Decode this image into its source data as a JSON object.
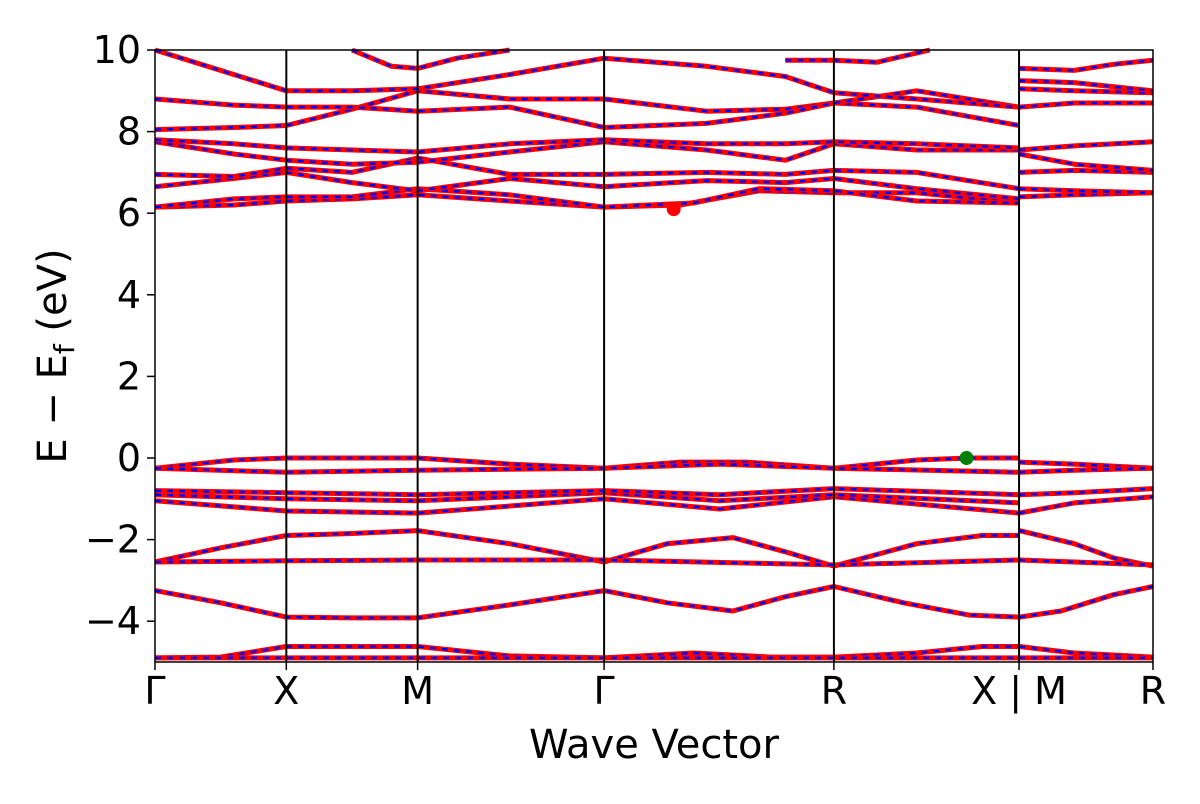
{
  "chart_data": {
    "type": "line",
    "title": "",
    "xlabel": "Wave Vector",
    "ylabel_main": "E − E",
    "ylabel_sub": "f",
    "ylabel_unit": " (eV)",
    "ylim": [
      -5,
      10
    ],
    "yticks": [
      {
        "value": -4,
        "label": "−4"
      },
      {
        "value": -2,
        "label": "−2"
      },
      {
        "value": 0,
        "label": "0"
      },
      {
        "value": 2,
        "label": "2"
      },
      {
        "value": 4,
        "label": "4"
      },
      {
        "value": 6,
        "label": "6"
      },
      {
        "value": 8,
        "label": "8"
      },
      {
        "value": 10,
        "label": "10"
      }
    ],
    "xlim": [
      0,
      7.6
    ],
    "kpoints": [
      {
        "x": 0.0,
        "label": "Γ"
      },
      {
        "x": 1.0,
        "label": "X"
      },
      {
        "x": 2.0,
        "label": "M"
      },
      {
        "x": 3.42,
        "label": "Γ"
      },
      {
        "x": 5.17,
        "label": "R"
      },
      {
        "x": 6.58,
        "label": "X | M"
      },
      {
        "x": 7.6,
        "label": "R"
      }
    ],
    "segment_break": 6.58,
    "series_colors": {
      "primary": "#ff0000",
      "secondary": "#0000ff"
    },
    "cbm_marker": {
      "x": 3.95,
      "y": 6.1,
      "color": "#ff0000"
    },
    "vbm_marker": {
      "x": 6.18,
      "y": 0.0,
      "color": "#008000"
    },
    "bands": [
      {
        "x": [
          0,
          0.5,
          1.0,
          1.5,
          2.0,
          2.7,
          3.42,
          4.1,
          4.7,
          5.17,
          5.8,
          6.3,
          6.58
        ],
        "y": [
          -4.9,
          -4.88,
          -4.62,
          -4.62,
          -4.62,
          -4.85,
          -4.9,
          -4.78,
          -4.88,
          -4.88,
          -4.78,
          -4.62,
          -4.62
        ]
      },
      {
        "x": [
          0,
          1.0,
          2.0,
          3.42,
          5.17,
          6.58
        ],
        "y": [
          -4.9,
          -4.9,
          -4.9,
          -4.9,
          -4.9,
          -4.9
        ]
      },
      {
        "x": [
          0,
          0.5,
          1.0,
          1.5,
          2.0,
          2.7,
          3.42,
          3.9,
          4.4,
          4.8,
          5.17,
          5.7,
          6.2,
          6.58
        ],
        "y": [
          -3.25,
          -3.55,
          -3.9,
          -3.92,
          -3.92,
          -3.6,
          -3.25,
          -3.55,
          -3.75,
          -3.4,
          -3.15,
          -3.55,
          -3.85,
          -3.9
        ]
      },
      {
        "x": [
          0,
          0.5,
          1.0,
          1.5,
          2.0,
          2.7,
          3.42,
          3.9,
          4.4,
          4.8,
          5.17,
          5.8,
          6.3,
          6.58
        ],
        "y": [
          -2.55,
          -2.2,
          -1.9,
          -1.85,
          -1.78,
          -2.1,
          -2.55,
          -2.1,
          -1.95,
          -2.3,
          -2.65,
          -2.1,
          -1.9,
          -1.9
        ]
      },
      {
        "x": [
          0,
          1.0,
          2.0,
          3.42,
          5.17,
          6.58
        ],
        "y": [
          -2.55,
          -2.52,
          -2.5,
          -2.5,
          -2.62,
          -2.5
        ]
      },
      {
        "x": [
          0,
          1.0,
          2.0,
          3.42,
          4.3,
          5.17,
          6.58
        ],
        "y": [
          -1.05,
          -1.3,
          -1.35,
          -1.0,
          -1.25,
          -0.95,
          -1.35
        ]
      },
      {
        "x": [
          0,
          1.0,
          2.0,
          3.42,
          4.3,
          5.17,
          6.58
        ],
        "y": [
          -0.9,
          -1.0,
          -1.05,
          -0.85,
          -1.05,
          -0.9,
          -1.1
        ]
      },
      {
        "x": [
          0,
          1.0,
          2.0,
          3.42,
          4.3,
          5.17,
          6.58
        ],
        "y": [
          -0.8,
          -0.85,
          -0.9,
          -0.8,
          -0.9,
          -0.75,
          -0.9
        ]
      },
      {
        "x": [
          0,
          0.6,
          1.0,
          1.5,
          2.0,
          2.7,
          3.42,
          4.0,
          4.5,
          5.17,
          5.8,
          6.2,
          6.58
        ],
        "y": [
          -0.25,
          -0.05,
          0.0,
          0.0,
          0.0,
          -0.15,
          -0.25,
          -0.1,
          -0.1,
          -0.25,
          -0.05,
          0.0,
          0.0
        ]
      },
      {
        "x": [
          0,
          1.0,
          2.0,
          3.42,
          4.3,
          5.17,
          6.58
        ],
        "y": [
          -0.25,
          -0.35,
          -0.3,
          -0.25,
          -0.15,
          -0.25,
          -0.35
        ]
      },
      {
        "x": [
          0,
          0.6,
          1.0,
          1.5,
          2.0,
          2.7,
          3.42,
          4.0,
          4.6,
          5.17,
          5.8,
          6.58
        ],
        "y": [
          6.15,
          6.2,
          6.3,
          6.35,
          6.45,
          6.3,
          6.15,
          6.2,
          6.55,
          6.5,
          6.5,
          6.25
        ]
      },
      {
        "x": [
          0,
          0.6,
          1.0,
          1.5,
          2.0,
          2.7,
          3.42,
          4.1,
          4.6,
          5.17,
          5.8,
          6.58
        ],
        "y": [
          6.15,
          6.35,
          6.4,
          6.4,
          6.6,
          6.45,
          6.15,
          6.25,
          6.6,
          6.55,
          6.3,
          6.25
        ]
      },
      {
        "x": [
          0,
          0.6,
          1.0,
          1.5,
          2.0,
          2.7,
          3.42,
          4.2,
          4.8,
          5.17,
          5.8,
          6.58
        ],
        "y": [
          6.65,
          6.85,
          7.0,
          6.75,
          6.55,
          6.85,
          6.65,
          6.8,
          6.75,
          6.85,
          6.6,
          6.35
        ]
      },
      {
        "x": [
          0,
          0.6,
          1.0,
          1.5,
          2.0,
          2.7,
          3.42,
          4.2,
          4.8,
          5.17,
          5.8,
          6.58
        ],
        "y": [
          6.95,
          6.9,
          7.1,
          7.0,
          7.35,
          6.95,
          6.95,
          7.0,
          6.95,
          7.05,
          7.0,
          6.6
        ]
      },
      {
        "x": [
          0,
          0.6,
          1.0,
          1.5,
          2.0,
          2.7,
          3.42,
          4.2,
          4.8,
          5.17,
          5.8,
          6.58
        ],
        "y": [
          7.75,
          7.45,
          7.3,
          7.2,
          7.25,
          7.5,
          7.75,
          7.55,
          7.3,
          7.7,
          7.55,
          7.55
        ]
      },
      {
        "x": [
          0,
          0.6,
          1.0,
          1.5,
          2.0,
          2.7,
          3.42,
          4.2,
          4.8,
          5.17,
          5.8,
          6.58
        ],
        "y": [
          7.8,
          7.7,
          7.6,
          7.55,
          7.5,
          7.7,
          7.8,
          7.7,
          7.7,
          7.75,
          7.7,
          7.6
        ]
      },
      {
        "x": [
          0,
          0.6,
          1.0,
          1.5,
          2.0,
          2.7,
          3.42,
          4.2,
          4.8,
          5.17,
          5.8,
          6.58
        ],
        "y": [
          8.05,
          8.1,
          8.15,
          8.55,
          9.0,
          8.8,
          8.8,
          8.5,
          8.55,
          8.7,
          8.6,
          8.15
        ]
      },
      {
        "x": [
          0,
          0.6,
          1.0,
          1.5,
          2.0,
          2.7,
          3.42,
          4.2,
          4.8,
          5.17,
          5.8,
          6.58
        ],
        "y": [
          8.8,
          8.65,
          8.6,
          8.6,
          8.5,
          8.6,
          8.1,
          8.2,
          8.45,
          8.7,
          9.0,
          8.6
        ]
      },
      {
        "x": [
          0,
          0.6,
          1.0,
          1.5,
          2.0,
          2.7,
          3.42,
          4.2,
          4.8,
          5.17,
          5.8,
          6.58
        ],
        "y": [
          10.1,
          9.4,
          9.0,
          9.0,
          9.05,
          9.4,
          9.8,
          9.6,
          9.35,
          8.95,
          8.8,
          8.6
        ]
      },
      {
        "x": [
          1.5,
          1.8,
          2.0,
          2.3,
          2.7
        ],
        "y": [
          10.1,
          9.6,
          9.55,
          9.8,
          10.1
        ]
      },
      {
        "x": [
          4.8,
          5.17,
          5.5,
          5.9
        ],
        "y": [
          9.75,
          9.75,
          9.7,
          10.1
        ]
      },
      {
        "x": [
          6.58,
          7.0,
          7.6
        ],
        "y": [
          -4.62,
          -4.78,
          -4.88
        ]
      },
      {
        "x": [
          6.58,
          7.0,
          7.6
        ],
        "y": [
          -4.9,
          -4.9,
          -4.9
        ]
      },
      {
        "x": [
          6.58,
          6.9,
          7.3,
          7.6
        ],
        "y": [
          -3.9,
          -3.75,
          -3.35,
          -3.15
        ]
      },
      {
        "x": [
          6.58,
          7.0,
          7.3,
          7.6
        ],
        "y": [
          -1.78,
          -2.1,
          -2.45,
          -2.65
        ]
      },
      {
        "x": [
          6.58,
          7.0,
          7.6
        ],
        "y": [
          -2.5,
          -2.55,
          -2.62
        ]
      },
      {
        "x": [
          6.58,
          7.0,
          7.6
        ],
        "y": [
          -1.35,
          -1.1,
          -0.95
        ]
      },
      {
        "x": [
          6.58,
          7.0,
          7.6
        ],
        "y": [
          -0.9,
          -0.85,
          -0.75
        ]
      },
      {
        "x": [
          6.58,
          7.0,
          7.6
        ],
        "y": [
          -0.1,
          -0.15,
          -0.25
        ]
      },
      {
        "x": [
          6.58,
          7.0,
          7.6
        ],
        "y": [
          -0.35,
          -0.3,
          -0.25
        ]
      },
      {
        "x": [
          6.58,
          7.0,
          7.6
        ],
        "y": [
          6.4,
          6.45,
          6.5
        ]
      },
      {
        "x": [
          6.58,
          7.0,
          7.6
        ],
        "y": [
          6.6,
          6.55,
          6.5
        ]
      },
      {
        "x": [
          6.58,
          7.0,
          7.6
        ],
        "y": [
          7.0,
          7.05,
          7.0
        ]
      },
      {
        "x": [
          6.58,
          7.0,
          7.6
        ],
        "y": [
          7.45,
          7.2,
          7.05
        ]
      },
      {
        "x": [
          6.58,
          7.0,
          7.6
        ],
        "y": [
          7.55,
          7.65,
          7.75
        ]
      },
      {
        "x": [
          6.58,
          7.0,
          7.6
        ],
        "y": [
          8.6,
          8.7,
          8.7
        ]
      },
      {
        "x": [
          6.58,
          7.0,
          7.6
        ],
        "y": [
          9.05,
          9.0,
          8.95
        ]
      },
      {
        "x": [
          6.58,
          7.0,
          7.6
        ],
        "y": [
          9.25,
          9.2,
          9.0
        ]
      },
      {
        "x": [
          6.58,
          7.0,
          7.3,
          7.6
        ],
        "y": [
          9.55,
          9.5,
          9.65,
          9.75
        ]
      }
    ]
  }
}
